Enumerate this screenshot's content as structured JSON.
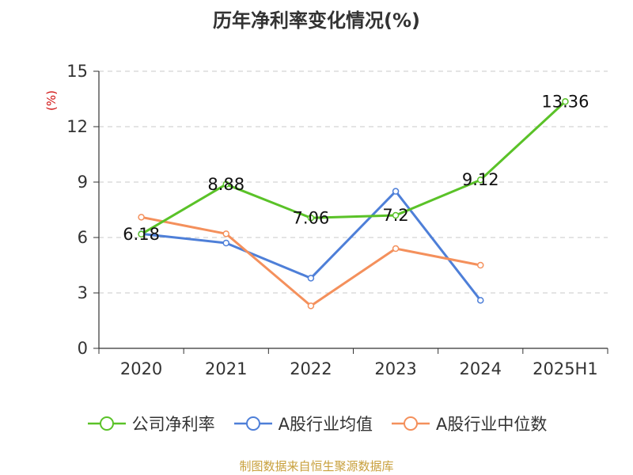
{
  "chart_data": {
    "type": "line",
    "title": "历年净利率变化情况(%)",
    "ylabel": "(%)",
    "categories": [
      "2020",
      "2021",
      "2022",
      "2023",
      "2024",
      "2025H1"
    ],
    "yticks": [
      "0",
      "3",
      "6",
      "9",
      "12",
      "15"
    ],
    "ylim": [
      0,
      15
    ],
    "grid": true,
    "legend_position": "bottom",
    "series": [
      {
        "name": "公司净利率",
        "color": "#5ac228",
        "values": [
          6.18,
          8.88,
          7.06,
          7.2,
          9.12,
          13.36
        ],
        "data_labels": [
          "6.18",
          "8.88",
          "7.06",
          "7.2",
          "9.12",
          "13.36"
        ]
      },
      {
        "name": "A股行业均值",
        "color": "#4e7fd8",
        "values": [
          6.2,
          5.7,
          3.8,
          8.5,
          2.6,
          null
        ]
      },
      {
        "name": "A股行业中位数",
        "color": "#f4905c",
        "values": [
          7.1,
          6.2,
          2.3,
          5.4,
          4.5,
          null
        ]
      }
    ]
  },
  "source_note": "制图数据来自恒生聚源数据库"
}
